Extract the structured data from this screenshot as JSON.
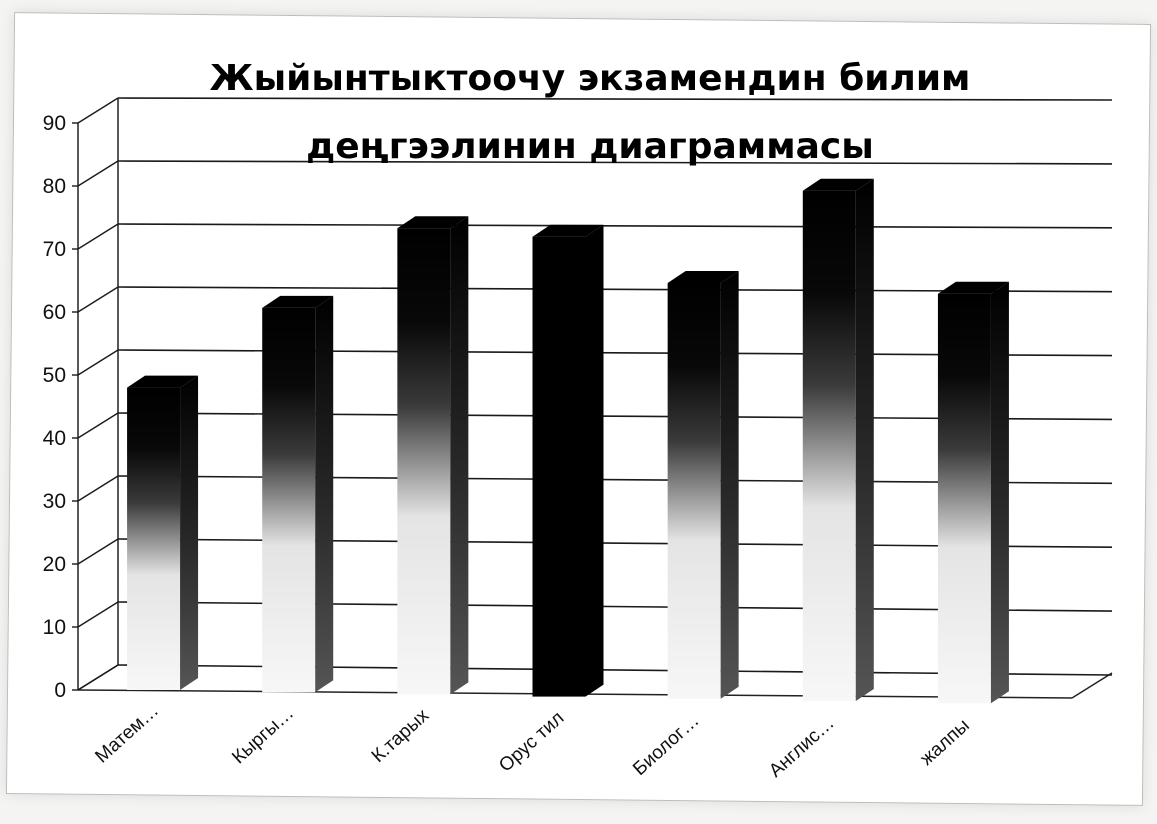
{
  "chart_data": {
    "type": "bar",
    "title_lines": [
      "Жыйынтыктоочу экзамендин билим",
      "деңгээлинин диаграммасы"
    ],
    "categories": [
      "Матем…",
      "Кыргы…",
      "К.тарых",
      "Орус тил",
      "Биолог…",
      "Англис…",
      "жалпы"
    ],
    "values": [
      48,
      61,
      74,
      73,
      66,
      81,
      65
    ],
    "ylim": [
      0,
      90
    ],
    "yticks": [
      0,
      10,
      20,
      30,
      40,
      50,
      60,
      70,
      80,
      90
    ],
    "xlabel": "",
    "ylabel": "",
    "grid": true,
    "legend": "none",
    "bar_style": "3d-gradient",
    "colors": {
      "dark": "#000000",
      "light": "#f2f2f2",
      "grid": "#222222"
    }
  }
}
